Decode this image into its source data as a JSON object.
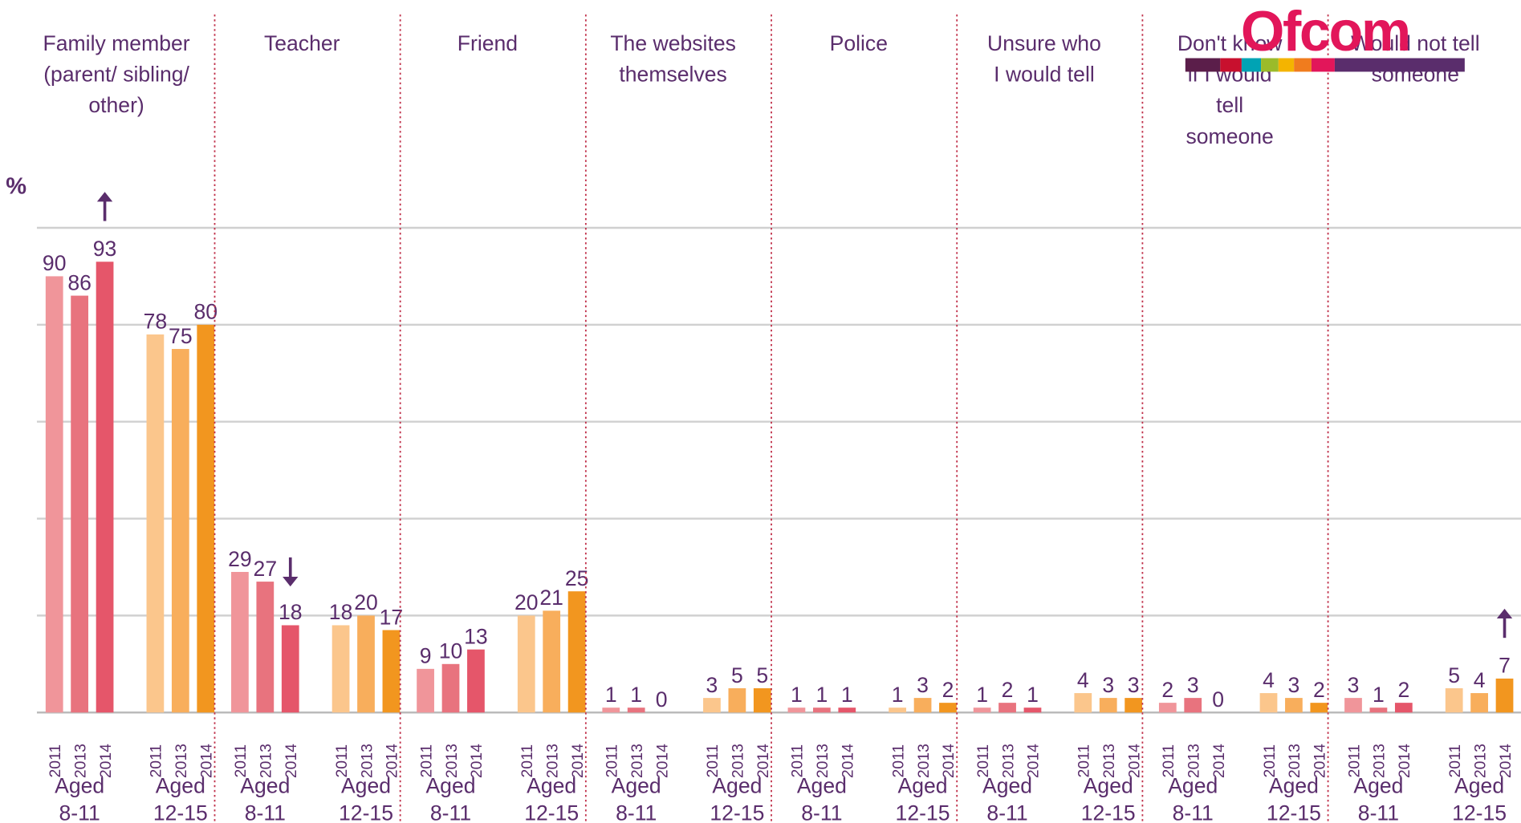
{
  "chart_data": {
    "type": "grouped_bar",
    "y_label": "%",
    "logo": "Ofcom",
    "ylim": [
      0,
      100
    ],
    "yticks": [
      0,
      20,
      40,
      60,
      80,
      100
    ],
    "grid": true,
    "years": [
      "2011",
      "2013",
      "2014"
    ],
    "age_groups": [
      {
        "label": [
          "Aged",
          "8-11"
        ],
        "colors": [
          "#f0959a",
          "#e8737e",
          "#e5566a"
        ]
      },
      {
        "label": [
          "Aged",
          "12-15"
        ],
        "colors": [
          "#fbc68c",
          "#f8ae5c",
          "#f2961f"
        ]
      }
    ],
    "categories": [
      {
        "label": [
          "Family member",
          "(parent/ sibling/",
          "other)"
        ],
        "values": [
          [
            90,
            86,
            93
          ],
          [
            78,
            75,
            80
          ]
        ],
        "change": [
          [
            null,
            null,
            "up"
          ],
          [
            null,
            null,
            null
          ]
        ]
      },
      {
        "label": [
          "Teacher"
        ],
        "values": [
          [
            29,
            27,
            18
          ],
          [
            18,
            20,
            17
          ]
        ],
        "change": [
          [
            null,
            null,
            "down"
          ],
          [
            null,
            null,
            null
          ]
        ]
      },
      {
        "label": [
          "Friend"
        ],
        "values": [
          [
            9,
            10,
            13
          ],
          [
            20,
            21,
            25
          ]
        ],
        "change": [
          [
            null,
            null,
            null
          ],
          [
            null,
            null,
            null
          ]
        ]
      },
      {
        "label": [
          "The websites",
          "themselves"
        ],
        "values": [
          [
            1,
            1,
            0
          ],
          [
            3,
            5,
            5
          ]
        ],
        "change": [
          [
            null,
            null,
            null
          ],
          [
            null,
            null,
            null
          ]
        ]
      },
      {
        "label": [
          "Police"
        ],
        "values": [
          [
            1,
            1,
            1
          ],
          [
            1,
            3,
            2
          ]
        ],
        "change": [
          [
            null,
            null,
            null
          ],
          [
            null,
            null,
            null
          ]
        ]
      },
      {
        "label": [
          "Unsure who",
          "I would tell"
        ],
        "values": [
          [
            1,
            2,
            1
          ],
          [
            4,
            3,
            3
          ]
        ],
        "change": [
          [
            null,
            null,
            null
          ],
          [
            null,
            null,
            null
          ]
        ]
      },
      {
        "label": [
          "Don't know",
          "if I would",
          "tell",
          "someone"
        ],
        "values": [
          [
            2,
            3,
            0
          ],
          [
            4,
            3,
            2
          ]
        ],
        "change": [
          [
            null,
            null,
            null
          ],
          [
            null,
            null,
            null
          ]
        ]
      },
      {
        "label": [
          "Would not tell",
          "someone"
        ],
        "values": [
          [
            3,
            1,
            2
          ],
          [
            5,
            4,
            7
          ]
        ],
        "change": [
          [
            null,
            null,
            null
          ],
          [
            null,
            null,
            "up"
          ]
        ]
      }
    ]
  }
}
